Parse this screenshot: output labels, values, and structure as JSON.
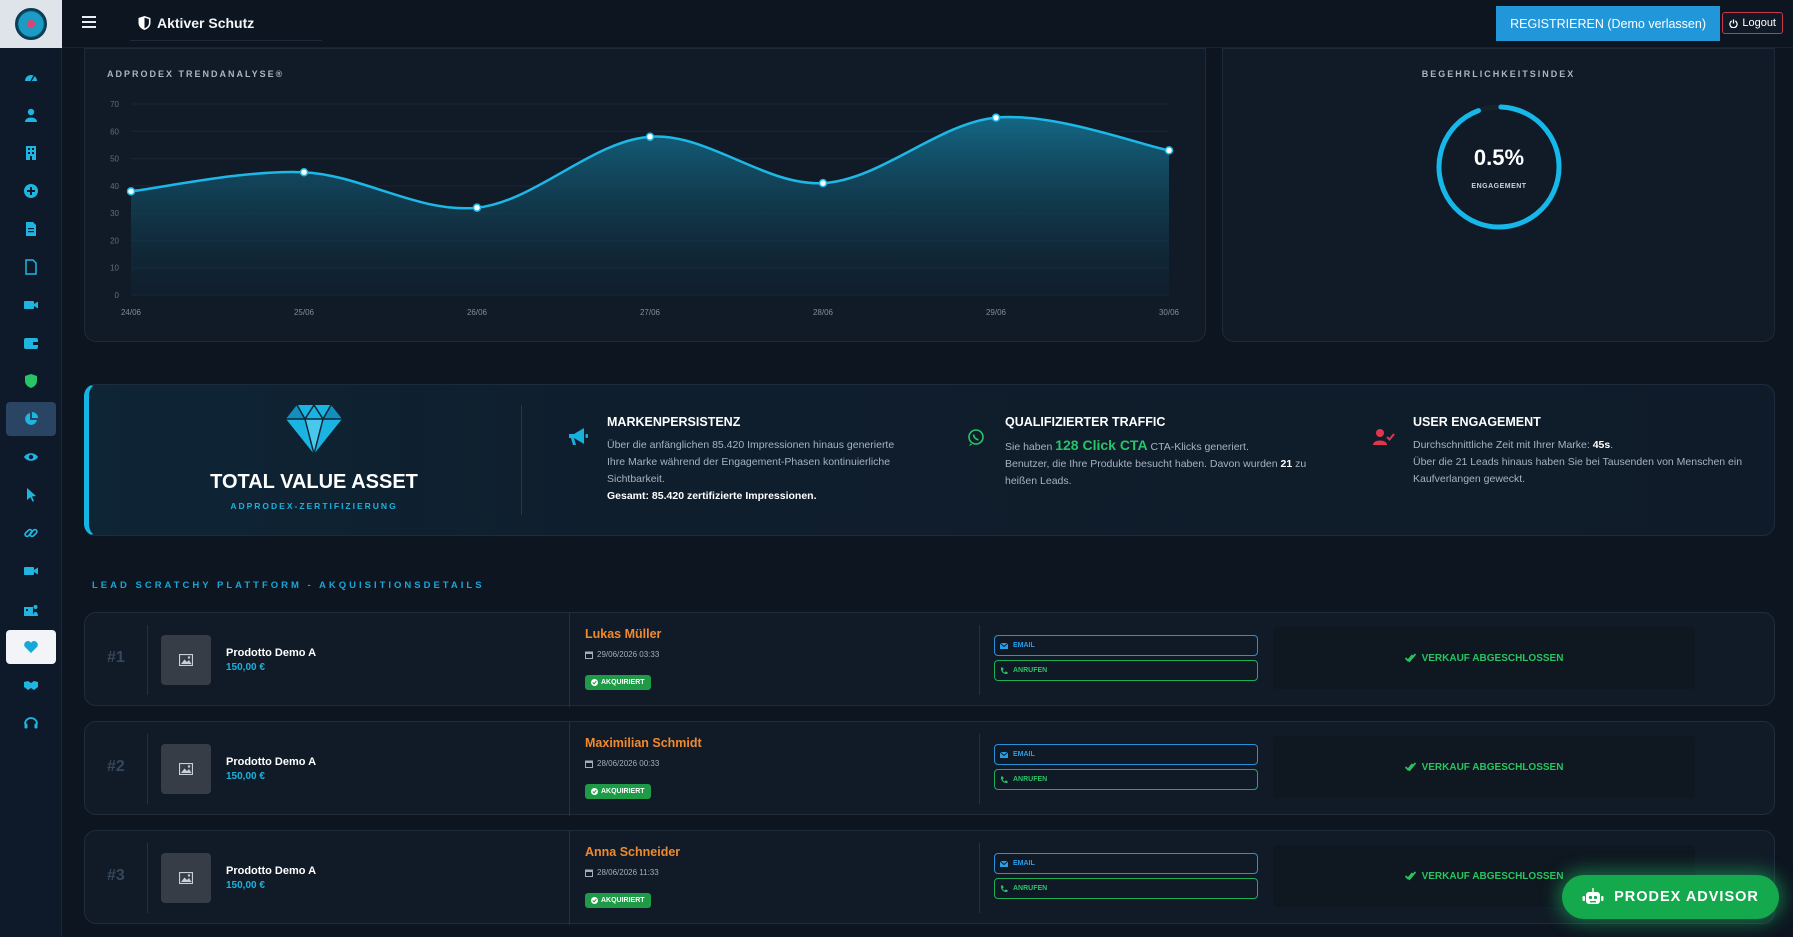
{
  "topbar": {
    "title": "Aktiver Schutz",
    "register_label": "REGISTRIEREN (Demo verlassen)",
    "logout_label": "Logout"
  },
  "sidebar": {
    "items": [
      {
        "icon": "dashboard-icon"
      },
      {
        "icon": "user-icon"
      },
      {
        "icon": "building-icon"
      },
      {
        "icon": "plus-circle-icon"
      },
      {
        "icon": "file-text-icon"
      },
      {
        "icon": "file-icon"
      },
      {
        "icon": "video-icon"
      },
      {
        "icon": "wallet-icon"
      },
      {
        "icon": "shield-icon"
      },
      {
        "icon": "pie-chart-icon",
        "active": true
      },
      {
        "icon": "eye-icon"
      },
      {
        "icon": "cursor-icon"
      },
      {
        "icon": "link-icon"
      },
      {
        "icon": "camera-icon"
      },
      {
        "icon": "users-building-icon"
      },
      {
        "icon": "heart-icon",
        "selected": true
      },
      {
        "icon": "handshake-icon"
      },
      {
        "icon": "headset-icon"
      }
    ]
  },
  "trend": {
    "title": "ADPRODEX TRENDANALYSE®"
  },
  "chart_data": {
    "type": "area",
    "title": "ADPRODEX TRENDANALYSE®",
    "categories": [
      "24/06",
      "25/06",
      "26/06",
      "27/06",
      "28/06",
      "29/06",
      "30/06"
    ],
    "values": [
      38,
      45,
      32,
      58,
      41,
      65,
      53
    ],
    "yticks": [
      0,
      10,
      20,
      30,
      40,
      50,
      60,
      70
    ],
    "ylim": [
      0,
      70
    ],
    "grid": true,
    "color": "#1cb9e8"
  },
  "index": {
    "title": "BEGEHRLICHKEITSINDEX",
    "value": "0.5%",
    "label": "ENGAGEMENT",
    "fraction": 0.005,
    "color": "#16b8ea"
  },
  "banner": {
    "title": "TOTAL VALUE ASSET",
    "subtitle": "ADPRODEX-ZERTIFIZIERUNG",
    "features": [
      {
        "icon": "megaphone-icon",
        "title": "MARKENPERSISTENZ",
        "text": "Über die anfänglichen 85.420 Impressionen hinaus generierte Ihre Marke während der Engagement-Phasen kontinuierliche Sichtbarkeit.",
        "strong": "Gesamt: 85.420 zertifizierte Impressionen."
      },
      {
        "icon": "whatsapp-icon",
        "title": "QUALIFIZIERTER TRAFFIC",
        "pre": "Sie haben ",
        "highlight": "128 Click CTA",
        "post": " CTA-Klicks generiert.",
        "line2a": "Benutzer, die Ihre Produkte besucht haben. Davon wurden ",
        "line2b": "21",
        "line2c": " zu heißen Leads."
      },
      {
        "icon": "user-check-icon",
        "title": "USER ENGAGEMENT",
        "pre": "Durchschnittliche Zeit mit Ihrer Marke: ",
        "strong": "45s",
        "post": ".",
        "line2": "Über die 21 Leads hinaus haben Sie bei Tausenden von Menschen ein Kaufverlangen geweckt."
      }
    ]
  },
  "leads": {
    "section_title": "LEAD SCRATCHY PLATTFORM - AKQUISITIONSDETAILS",
    "email_label": "EMAIL",
    "call_label": "ANRUFEN",
    "sold_label": "VERKAUF ABGESCHLOSSEN",
    "badge_label": "AKQUIRIERT",
    "rows": [
      {
        "num": "#1",
        "product": "Prodotto Demo A",
        "price": "150,00 €",
        "name": "Lukas Müller",
        "date": "29/06/2026 03:33"
      },
      {
        "num": "#2",
        "product": "Prodotto Demo A",
        "price": "150,00 €",
        "name": "Maximilian Schmidt",
        "date": "28/06/2026 00:33"
      },
      {
        "num": "#3",
        "product": "Prodotto Demo A",
        "price": "150,00 €",
        "name": "Anna Schneider",
        "date": "28/06/2026 11:33"
      }
    ]
  },
  "advisor": {
    "label": "PRODEX ADVISOR"
  }
}
